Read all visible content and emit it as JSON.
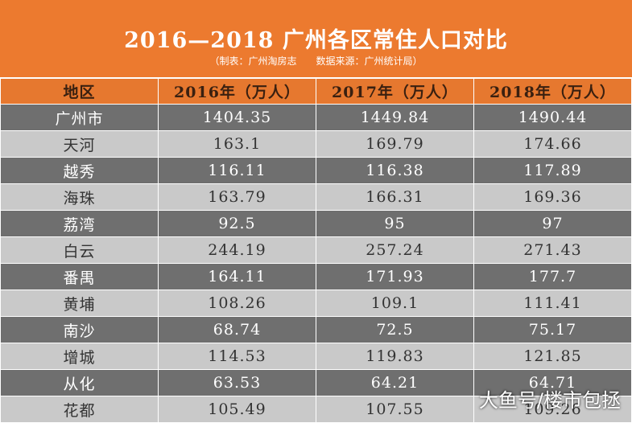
{
  "header": {
    "title": "2016—2018 广州各区常住人口对比",
    "subtitle": "（制表：广州淘房志　　数据来源：广州统计局）"
  },
  "table": {
    "columns": [
      "地区",
      "2016年（万人）",
      "2017年（万人）",
      "2018年（万人）"
    ],
    "rows": [
      [
        "广州市",
        "1404.35",
        "1449.84",
        "1490.44"
      ],
      [
        "天河",
        "163.1",
        "169.79",
        "174.66"
      ],
      [
        "越秀",
        "116.11",
        "116.38",
        "117.89"
      ],
      [
        "海珠",
        "163.79",
        "166.31",
        "169.36"
      ],
      [
        "荔湾",
        "92.5",
        "95",
        "97"
      ],
      [
        "白云",
        "244.19",
        "257.24",
        "271.43"
      ],
      [
        "番禺",
        "164.11",
        "171.93",
        "177.7"
      ],
      [
        "黄埔",
        "108.26",
        "109.1",
        "111.41"
      ],
      [
        "南沙",
        "68.74",
        "72.5",
        "75.17"
      ],
      [
        "增城",
        "114.53",
        "119.83",
        "121.85"
      ],
      [
        "从化",
        "63.53",
        "64.21",
        "64.71"
      ],
      [
        "花都",
        "105.49",
        "107.55",
        "109.26"
      ]
    ]
  },
  "watermark": "大鱼号/楼市包拯"
}
